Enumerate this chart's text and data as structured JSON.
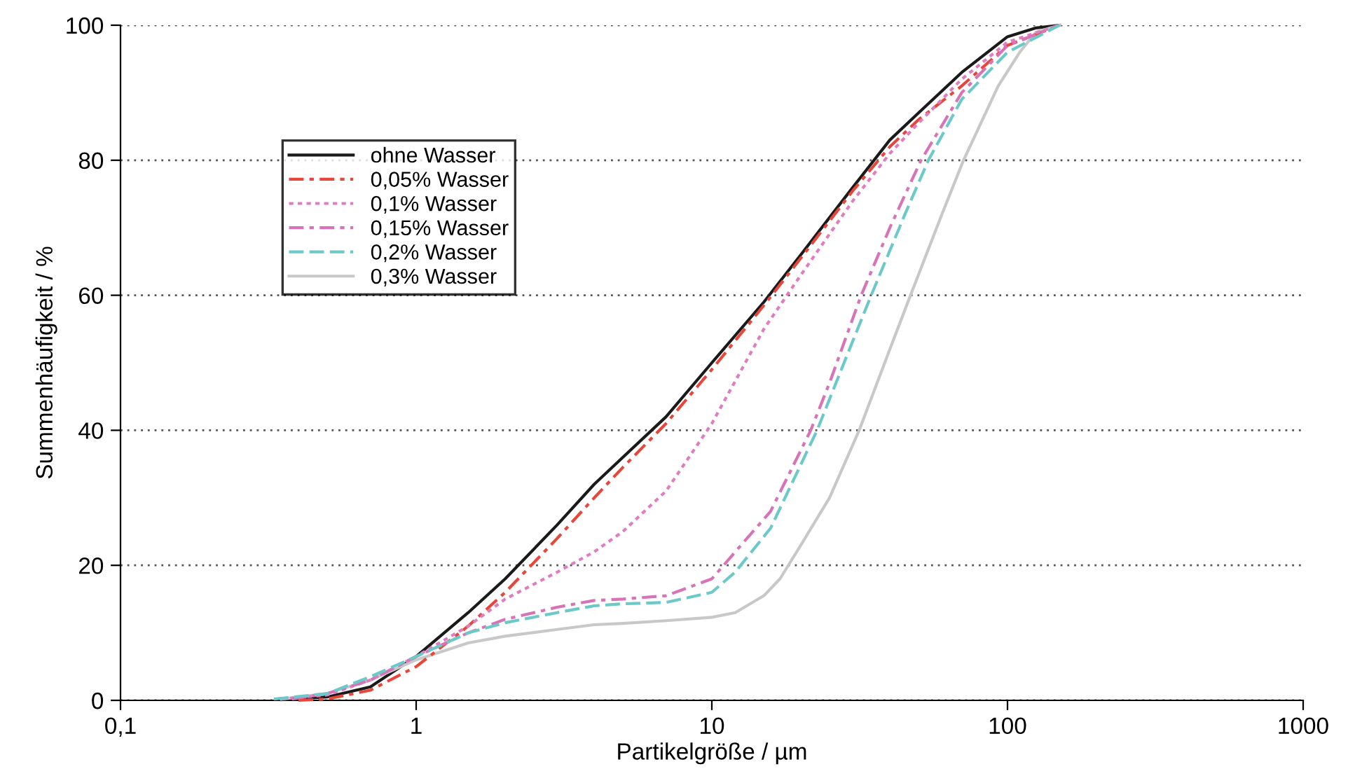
{
  "chart_data": {
    "type": "line",
    "xlabel": "Partikelgröße / µm",
    "ylabel": "Summenhäufigkeit / %",
    "log": "x",
    "xlim": [
      0.1,
      1000
    ],
    "xticks": [
      {
        "value": 0.1,
        "label": "0,1"
      },
      1,
      10,
      100,
      1000
    ],
    "ylim": [
      0,
      100
    ],
    "yticks": [
      0,
      20,
      40,
      60,
      80,
      100
    ],
    "grid": "y",
    "legend": "top left",
    "marker": "none",
    "series": [
      {
        "name": "ohne Wasser",
        "color": "#1a1a1a",
        "line_style": "solid",
        "x": [
          0.35,
          0.5,
          0.7,
          1,
          1.5,
          2,
          3,
          4,
          5,
          7,
          10,
          15,
          20,
          30,
          40,
          50,
          70,
          100,
          125,
          150
        ],
        "values": [
          0.1,
          0.5,
          2,
          6.5,
          13,
          18,
          26,
          32,
          36,
          42,
          50,
          59,
          66,
          76,
          83,
          87,
          93,
          98.3,
          99.6,
          100
        ]
      },
      {
        "name": "0,05% Wasser",
        "color": "#e8463a",
        "line_style": "dashdot",
        "x": [
          0.4,
          0.5,
          0.7,
          1,
          1.5,
          2,
          3,
          4,
          5,
          7,
          10,
          15,
          20,
          30,
          40,
          50,
          70,
          100,
          150
        ],
        "values": [
          0,
          0.2,
          1.5,
          5,
          11,
          16,
          24,
          30,
          34.5,
          41,
          49,
          58.5,
          65.5,
          75.5,
          82,
          86,
          91,
          97,
          100
        ]
      },
      {
        "name": "0,1% Wasser",
        "color": "#e07cc0",
        "line_style": "dotted",
        "x": [
          0.35,
          0.5,
          0.7,
          1,
          1.5,
          2,
          3,
          4,
          5,
          7,
          10,
          15,
          20,
          30,
          40,
          50,
          70,
          100,
          150
        ],
        "values": [
          0.2,
          0.8,
          3,
          6.5,
          11,
          15,
          19,
          22,
          25,
          31,
          41,
          55,
          63,
          74,
          81,
          85.5,
          92,
          97.5,
          100
        ]
      },
      {
        "name": "0,15% Wasser",
        "color": "#d873b8",
        "line_style": "dashdot",
        "x": [
          0.38,
          0.5,
          0.7,
          1,
          1.5,
          2,
          3,
          4,
          5,
          7,
          10,
          12,
          15.8,
          21.6,
          25,
          32,
          40,
          51,
          70,
          100,
          150
        ],
        "values": [
          0.2,
          1,
          3,
          6.5,
          10,
          12,
          13.8,
          14.8,
          15,
          15.5,
          18,
          22,
          28,
          40,
          47,
          60,
          70,
          80,
          90,
          97,
          100
        ]
      },
      {
        "name": "0,2% Wasser",
        "color": "#6cc9c9",
        "line_style": "dashed",
        "x": [
          0.33,
          0.5,
          0.7,
          1,
          1.5,
          2,
          3,
          4,
          5,
          7,
          10,
          12,
          15.8,
          22.7,
          28,
          34.6,
          45,
          54,
          70,
          100,
          150
        ],
        "values": [
          0.2,
          1,
          3.5,
          6.5,
          10,
          11.5,
          13,
          14,
          14.3,
          14.5,
          16,
          19,
          25.5,
          40,
          50,
          60,
          72,
          80,
          89,
          96,
          100
        ]
      },
      {
        "name": "0,3% Wasser",
        "color": "#c8c8c8",
        "line_style": "solid",
        "x": [
          0.35,
          0.5,
          0.7,
          1,
          1.5,
          2,
          3,
          4,
          5,
          7,
          10,
          12,
          15,
          17,
          20,
          25,
          31.5,
          40,
          47,
          60,
          71,
          93,
          110,
          125,
          150
        ],
        "values": [
          0.2,
          1,
          3,
          6,
          8.5,
          9.5,
          10.5,
          11.2,
          11.4,
          11.8,
          12.3,
          13,
          15.5,
          18,
          23,
          30,
          40,
          52,
          60,
          72,
          80,
          91,
          96,
          99,
          100
        ]
      }
    ]
  }
}
